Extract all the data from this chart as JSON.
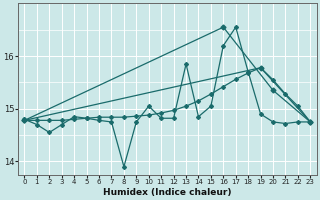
{
  "xlabel": "Humidex (Indice chaleur)",
  "xlim": [
    -0.5,
    23.5
  ],
  "ylim": [
    13.75,
    17.0
  ],
  "yticks": [
    14,
    15,
    16
  ],
  "xticks": [
    0,
    1,
    2,
    3,
    4,
    5,
    6,
    7,
    8,
    9,
    10,
    11,
    12,
    13,
    14,
    15,
    16,
    17,
    18,
    19,
    20,
    21,
    22,
    23
  ],
  "bg_color": "#cce8e8",
  "grid_color": "#ffffff",
  "line_color": "#1a6b6b",
  "lines": [
    {
      "x": [
        0,
        1,
        2,
        3,
        4,
        5,
        6,
        7,
        8,
        9,
        10,
        11,
        12,
        13,
        14,
        15,
        16,
        17,
        18,
        19,
        20,
        21,
        22,
        23
      ],
      "y": [
        14.8,
        14.7,
        14.55,
        14.7,
        14.85,
        14.82,
        14.78,
        14.75,
        13.9,
        14.75,
        15.05,
        14.82,
        14.82,
        15.85,
        14.85,
        15.05,
        16.2,
        16.55,
        15.7,
        14.9,
        14.75,
        14.72,
        14.75,
        14.75
      ]
    },
    {
      "x": [
        0,
        1,
        2,
        3,
        4,
        5,
        6,
        7,
        8,
        9,
        10,
        11,
        12,
        13,
        14,
        15,
        16,
        17,
        18,
        19,
        20,
        21,
        22,
        23
      ],
      "y": [
        14.78,
        14.78,
        14.78,
        14.78,
        14.8,
        14.82,
        14.84,
        14.84,
        14.84,
        14.86,
        14.88,
        14.92,
        14.97,
        15.05,
        15.15,
        15.28,
        15.42,
        15.56,
        15.68,
        15.78,
        15.55,
        15.28,
        15.05,
        14.75
      ]
    },
    {
      "x": [
        0,
        16,
        20,
        23
      ],
      "y": [
        14.78,
        16.55,
        15.35,
        14.75
      ]
    },
    {
      "x": [
        0,
        19,
        23
      ],
      "y": [
        14.78,
        15.78,
        14.75
      ]
    }
  ]
}
